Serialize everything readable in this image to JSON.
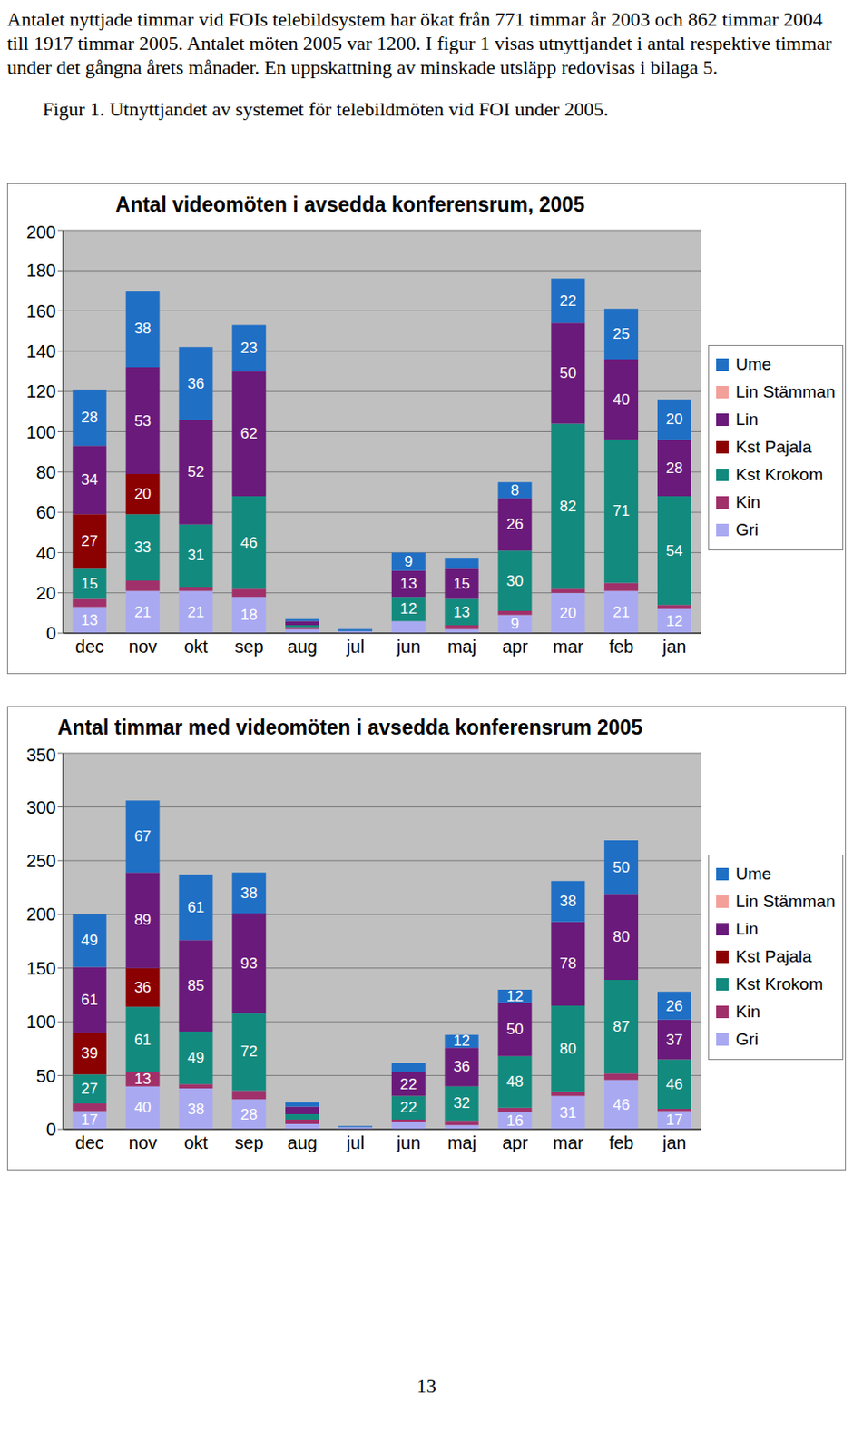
{
  "paragraph": "Antalet nyttjade timmar vid FOIs telebildsystem har ökat från 771 timmar år 2003 och 862 timmar 2004 till 1917 timmar 2005. Antalet möten 2005 var 1200. I figur 1 visas utnyttjandet i antal respektive timmar under det gångna årets månader. En uppskattning av minskade utsläpp redovisas i bilaga 5.",
  "caption": "Figur 1. Utnyttjandet av systemet för telebildmöten vid FOI under 2005.",
  "page_number": "13",
  "chart_data": [
    {
      "type": "bar",
      "title": "Antal videomöten i avsedda konferensrum, 2005",
      "categories": [
        "dec",
        "nov",
        "okt",
        "sep",
        "aug",
        "jul",
        "jun",
        "maj",
        "apr",
        "mar",
        "feb",
        "jan"
      ],
      "series": [
        {
          "name": "Gri",
          "color": "#a9a9f2",
          "values": [
            13,
            21,
            21,
            18,
            2,
            1,
            6,
            2,
            9,
            20,
            21,
            12
          ]
        },
        {
          "name": "Kin",
          "color": "#a0306a",
          "values": [
            4,
            5,
            2,
            4,
            1,
            0,
            0,
            2,
            2,
            2,
            4,
            2
          ]
        },
        {
          "name": "Kst Krokom",
          "color": "#138a7e",
          "values": [
            15,
            33,
            31,
            46,
            1,
            0,
            12,
            13,
            30,
            82,
            71,
            54
          ]
        },
        {
          "name": "Kst Pajala",
          "color": "#8b0000",
          "values": [
            27,
            20,
            0,
            0,
            null,
            null,
            null,
            null,
            null,
            null,
            null,
            null
          ]
        },
        {
          "name": "Lin",
          "color": "#6a1a7a",
          "values": [
            34,
            53,
            52,
            62,
            2,
            0,
            13,
            15,
            26,
            50,
            40,
            28
          ]
        },
        {
          "name": "Lin Stämman",
          "color": "#f4a09a",
          "values": [
            0,
            0,
            0,
            0,
            null,
            null,
            null,
            null,
            null,
            null,
            null,
            null
          ]
        },
        {
          "name": "Ume",
          "color": "#1f6fc5",
          "values": [
            28,
            38,
            36,
            23,
            1,
            1,
            9,
            5,
            8,
            22,
            25,
            20
          ]
        }
      ],
      "ylim": [
        0,
        200
      ],
      "yticks": [
        0,
        20,
        40,
        60,
        80,
        100,
        120,
        140,
        160,
        180,
        200
      ],
      "stacked": true,
      "data_labels": true,
      "grid": true,
      "legend": "right"
    },
    {
      "type": "bar",
      "title": "Antal timmar med videomöten i avsedda konferensrum 2005",
      "categories": [
        "dec",
        "nov",
        "okt",
        "sep",
        "aug",
        "jul",
        "jun",
        "maj",
        "apr",
        "mar",
        "feb",
        "jan"
      ],
      "series": [
        {
          "name": "Gri",
          "color": "#a9a9f2",
          "values": [
            17,
            40,
            38,
            28,
            5,
            2,
            7,
            4,
            16,
            31,
            46,
            17
          ]
        },
        {
          "name": "Kin",
          "color": "#a0306a",
          "values": [
            7,
            13,
            4,
            8,
            4,
            0,
            2,
            4,
            4,
            4,
            6,
            2
          ]
        },
        {
          "name": "Kst Krokom",
          "color": "#138a7e",
          "values": [
            27,
            61,
            49,
            72,
            5,
            0,
            22,
            32,
            48,
            80,
            87,
            46
          ]
        },
        {
          "name": "Kst Pajala",
          "color": "#8b0000",
          "values": [
            39,
            36,
            0,
            0,
            null,
            null,
            null,
            null,
            null,
            null,
            null,
            null
          ]
        },
        {
          "name": "Lin",
          "color": "#6a1a7a",
          "values": [
            61,
            89,
            85,
            93,
            7,
            0,
            22,
            36,
            50,
            78,
            80,
            37
          ]
        },
        {
          "name": "Lin Stämman",
          "color": "#f4a09a",
          "values": [
            0,
            0,
            0,
            0,
            null,
            null,
            null,
            null,
            null,
            null,
            null,
            null
          ]
        },
        {
          "name": "Ume",
          "color": "#1f6fc5",
          "values": [
            49,
            67,
            61,
            38,
            4,
            1,
            9,
            12,
            12,
            38,
            50,
            26
          ]
        }
      ],
      "ylim": [
        0,
        350
      ],
      "yticks": [
        0,
        50,
        100,
        150,
        200,
        250,
        300,
        350
      ],
      "stacked": true,
      "data_labels": true,
      "grid": true,
      "legend": "right"
    }
  ]
}
